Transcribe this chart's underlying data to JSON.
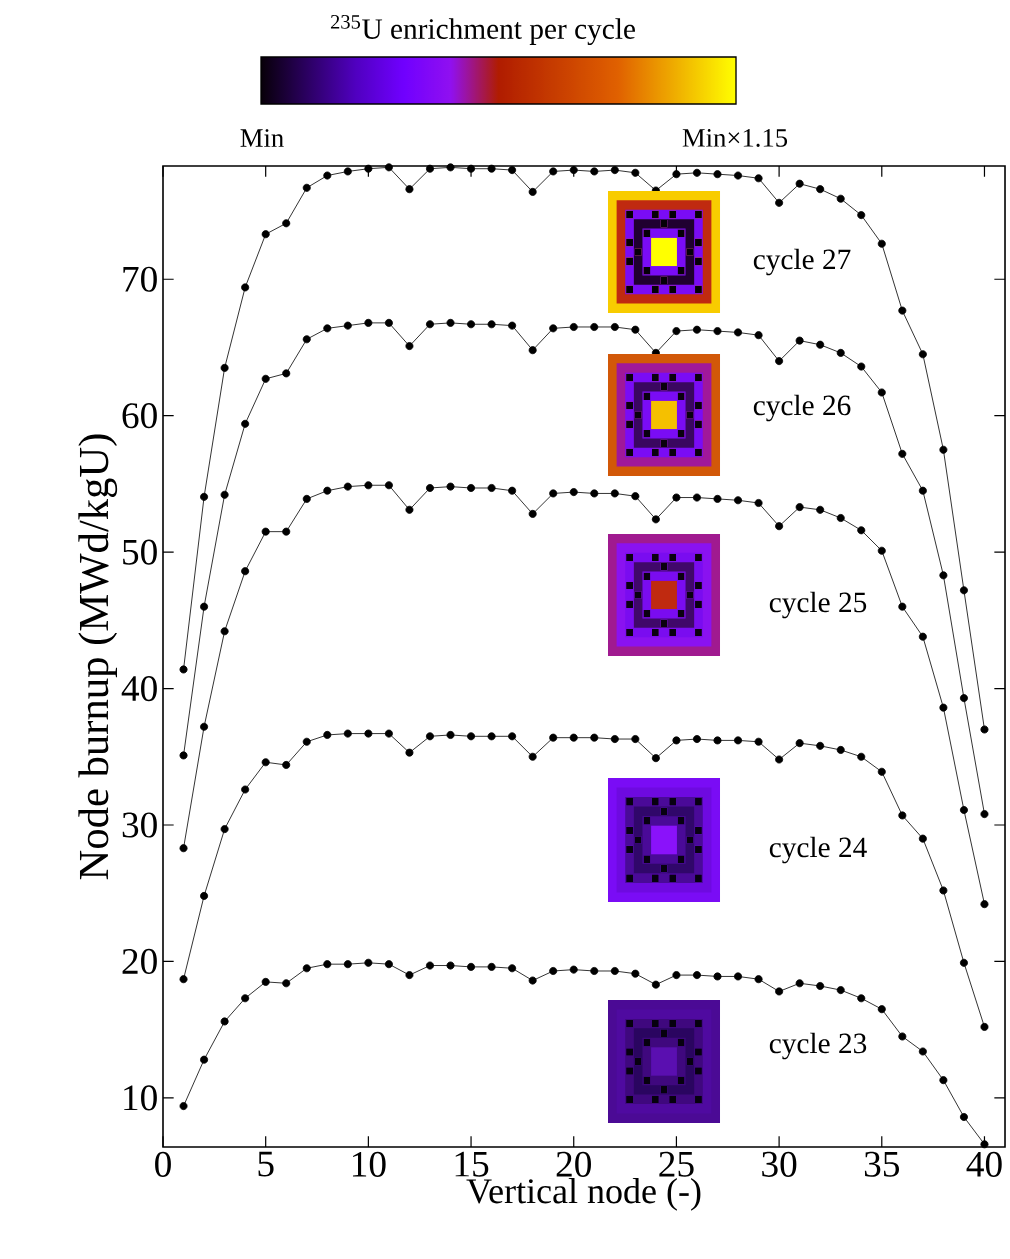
{
  "chart_data": {
    "type": "line",
    "xlabel": "Vertical node (-)",
    "ylabel": "Node burnup (MWd/kgU)",
    "x": [
      1,
      2,
      3,
      4,
      5,
      6,
      7,
      8,
      9,
      10,
      11,
      12,
      13,
      14,
      15,
      16,
      17,
      18,
      19,
      20,
      21,
      22,
      23,
      24,
      25,
      26,
      27,
      28,
      29,
      30,
      31,
      32,
      33,
      34,
      35,
      36,
      37,
      38,
      39,
      40
    ],
    "xlim": [
      0,
      41
    ],
    "ylim": [
      6.4,
      78.3
    ],
    "xticks": [
      0,
      5,
      10,
      15,
      20,
      25,
      30,
      35,
      40
    ],
    "yticks": [
      10,
      20,
      30,
      40,
      50,
      60,
      70
    ],
    "marker": "circle",
    "line_style": "solid",
    "series": [
      {
        "color": "#000000",
        "values": [
          9.4,
          12.8,
          15.6,
          17.3,
          18.5,
          18.4,
          19.5,
          19.8,
          19.8,
          19.9,
          19.8,
          19.0,
          19.7,
          19.7,
          19.6,
          19.6,
          19.5,
          18.6,
          19.3,
          19.4,
          19.3,
          19.3,
          19.1,
          18.3,
          19.0,
          19.0,
          18.9,
          18.9,
          18.7,
          17.8,
          18.4,
          18.2,
          17.9,
          17.3,
          16.5,
          14.5,
          13.4,
          11.3,
          8.6,
          6.6
        ]
      },
      {
        "color": "#000000",
        "values": [
          18.7,
          24.8,
          29.7,
          32.6,
          34.6,
          34.4,
          36.1,
          36.6,
          36.7,
          36.7,
          36.7,
          35.3,
          36.5,
          36.6,
          36.5,
          36.5,
          36.5,
          35.0,
          36.4,
          36.4,
          36.4,
          36.3,
          36.3,
          34.9,
          36.2,
          36.3,
          36.2,
          36.2,
          36.1,
          34.8,
          36.0,
          35.8,
          35.5,
          35.0,
          33.9,
          30.7,
          29.0,
          25.2,
          19.9,
          15.2
        ]
      },
      {
        "color": "#000000",
        "values": [
          28.3,
          37.2,
          44.2,
          48.6,
          51.5,
          51.5,
          53.9,
          54.5,
          54.8,
          54.9,
          54.9,
          53.1,
          54.7,
          54.8,
          54.7,
          54.7,
          54.5,
          52.8,
          54.3,
          54.4,
          54.3,
          54.3,
          54.1,
          52.4,
          54.0,
          54.0,
          53.9,
          53.8,
          53.6,
          51.9,
          53.3,
          53.1,
          52.5,
          51.6,
          50.1,
          46.0,
          43.8,
          38.6,
          31.1,
          24.2
        ]
      },
      {
        "color": "#000000",
        "values": [
          35.1,
          46.0,
          54.2,
          59.4,
          62.7,
          63.1,
          65.6,
          66.4,
          66.6,
          66.8,
          66.8,
          65.1,
          66.7,
          66.8,
          66.7,
          66.7,
          66.6,
          64.8,
          66.4,
          66.5,
          66.5,
          66.5,
          66.3,
          64.6,
          66.2,
          66.3,
          66.2,
          66.1,
          65.9,
          64.0,
          65.5,
          65.2,
          64.6,
          63.6,
          61.7,
          57.2,
          54.5,
          48.3,
          39.3,
          30.8
        ]
      },
      {
        "color": "#000000",
        "values": [
          41.4,
          54.05,
          63.5,
          69.4,
          73.3,
          74.1,
          76.7,
          77.6,
          77.9,
          78.1,
          78.2,
          76.6,
          78.1,
          78.2,
          78.1,
          78.1,
          78.0,
          76.4,
          77.9,
          78.0,
          77.9,
          78.0,
          77.8,
          76.5,
          77.7,
          77.8,
          77.7,
          77.6,
          77.4,
          75.6,
          77.0,
          76.6,
          75.9,
          74.7,
          72.6,
          67.7,
          64.5,
          57.5,
          47.2,
          37.0
        ]
      }
    ],
    "annotations": [
      "$^{235}$U enrichment per cycle",
      "Min",
      "Min×1.15",
      "cycle 27",
      "cycle 26",
      "cycle 25",
      "cycle 24",
      "cycle 23"
    ]
  }
}
